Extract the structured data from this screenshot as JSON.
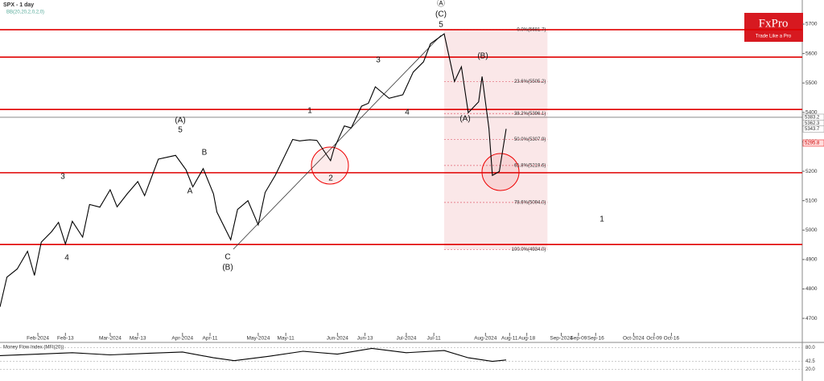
{
  "chart_data": [
    {
      "type": "line",
      "title": "SPX - 1 day",
      "subtitle": "BB(20,20,2,0,2,0)",
      "brand": "FxPro",
      "tagline": "Trade Like a Pro",
      "x": [
        "2024-01-17",
        "2024-01-19",
        "2024-01-24",
        "2024-01-29",
        "2024-01-31",
        "2024-02-02",
        "2024-02-07",
        "2024-02-09",
        "2024-02-13",
        "2024-02-15",
        "2024-02-20",
        "2024-02-22",
        "2024-02-27",
        "2024-03-01",
        "2024-03-05",
        "2024-03-08",
        "2024-03-13",
        "2024-03-15",
        "2024-03-21",
        "2024-03-28",
        "2024-04-02",
        "2024-04-04",
        "2024-04-09",
        "2024-04-12",
        "2024-04-15",
        "2024-04-19",
        "2024-04-23",
        "2024-04-26",
        "2024-05-01",
        "2024-05-03",
        "2024-05-08",
        "2024-05-15",
        "2024-05-17",
        "2024-05-22",
        "2024-05-24",
        "2024-05-30",
        "2024-05-31",
        "2024-06-05",
        "2024-06-07",
        "2024-06-12",
        "2024-06-14",
        "2024-06-18",
        "2024-06-24",
        "2024-06-28",
        "2024-07-03",
        "2024-07-08",
        "2024-07-10",
        "2024-07-16",
        "2024-07-19",
        "2024-07-23",
        "2024-07-25",
        "2024-07-30",
        "2024-07-31",
        "2024-08-02",
        "2024-08-05",
        "2024-08-07",
        "2024-08-09"
      ],
      "series": [
        {
          "name": "SPX",
          "color": "#000000",
          "values": [
            4739,
            4840,
            4868,
            4928,
            4846,
            4959,
            4995,
            5026,
            4953,
            5030,
            4976,
            5087,
            5078,
            5137,
            5079,
            5124,
            5165,
            5117,
            5241,
            5254,
            5205,
            5147,
            5209,
            5123,
            5061,
            4967,
            5070,
            5100,
            5018,
            5128,
            5187,
            5308,
            5303,
            5307,
            5305,
            5236,
            5277,
            5354,
            5347,
            5421,
            5431,
            5487,
            5448,
            5460,
            5537,
            5572,
            5633,
            5667,
            5505,
            5555,
            5399,
            5436,
            5522,
            5346,
            5186,
            5199,
            5344
          ]
        }
      ],
      "xlim": [
        "2024-01-17",
        "2024-12-09"
      ],
      "xticks": [
        {
          "value": "2024-02-01",
          "label": "Feb-2024"
        },
        {
          "value": "2024-02-13",
          "label": "Feb-13"
        },
        {
          "value": "2024-03-01",
          "label": "Mar-2024"
        },
        {
          "value": "2024-03-13",
          "label": "Mar-13"
        },
        {
          "value": "2024-04-01",
          "label": "Apr-2024"
        },
        {
          "value": "2024-04-11",
          "label": "Apr-11"
        },
        {
          "value": "2024-05-01",
          "label": "May-2024"
        },
        {
          "value": "2024-05-11",
          "label": "May-11"
        },
        {
          "value": "2024-06-01",
          "label": "Jun-2024"
        },
        {
          "value": "2024-06-13",
          "label": "Jun-13"
        },
        {
          "value": "2024-07-01",
          "label": "Jul-2024"
        },
        {
          "value": "2024-07-11",
          "label": "Jul-11"
        },
        {
          "value": "2024-08-01",
          "label": "Aug-2024"
        },
        {
          "value": "2024-08-11",
          "label": "Aug-11"
        },
        {
          "value": "2024-08-18",
          "label": "Aug-18"
        },
        {
          "value": "2024-09-01",
          "label": "Sep-2024"
        },
        {
          "value": "2024-09-09",
          "label": "Sep-09"
        },
        {
          "value": "2024-09-16",
          "label": "Sep-16"
        },
        {
          "value": "2024-10-01",
          "label": "Oct-2024"
        },
        {
          "value": "2024-10-09",
          "label": "Oct-09"
        },
        {
          "value": "2024-10-16",
          "label": "Oct-16"
        }
      ],
      "ylim": [
        4621,
        5782
      ],
      "yticks": [
        4700,
        4800,
        4900,
        5000,
        5100,
        5200,
        5300,
        5400,
        5500,
        5600,
        5700
      ],
      "levels": [
        5681,
        5588,
        5410,
        5195,
        4951
      ],
      "level_color": "#e00000",
      "last_price": 5383.2,
      "price_markers": [
        5383.2,
        5362.3,
        5343.7,
        5295.8
      ],
      "fib_x": [
        "2024-07-16",
        "2024-08-27"
      ],
      "fib": [
        {
          "value": 5681.7,
          "label": "0.0%(5681.7)"
        },
        {
          "value": 5505.2,
          "label": "23.6%(5505.2)"
        },
        {
          "value": 5396.1,
          "label": "38.2%(5396.1)"
        },
        {
          "value": 5307.9,
          "label": "50.0%(5307.9)"
        },
        {
          "value": 5219.6,
          "label": "61.8%(5219.6)"
        },
        {
          "value": 5094.0,
          "label": "78.6%(5094.0)"
        },
        {
          "value": 4934.0,
          "label": "100.0%(4934.0)"
        }
      ],
      "annotations": [
        "Ⓐ",
        "(C)",
        "5",
        "(B)",
        "(A)",
        "4",
        "3",
        "1",
        "2",
        "(A)",
        "5",
        "B",
        "A",
        "C",
        "(B)",
        "3",
        "4",
        "1"
      ]
    },
    {
      "type": "line",
      "title": "Money Flow Index (MFI(20))",
      "x": [
        "2024-01-17",
        "2024-02-01",
        "2024-02-15",
        "2024-03-01",
        "2024-03-15",
        "2024-04-01",
        "2024-04-12",
        "2024-04-22",
        "2024-05-06",
        "2024-05-20",
        "2024-06-03",
        "2024-06-17",
        "2024-07-01",
        "2024-07-16",
        "2024-07-25",
        "2024-08-05",
        "2024-08-09"
      ],
      "series": [
        {
          "name": "MFI",
          "color": "#000000",
          "values": [
            58,
            62,
            66,
            60,
            64,
            68,
            52,
            44,
            56,
            70,
            62,
            78,
            66,
            72,
            52,
            42,
            46
          ]
        }
      ],
      "ylim": [
        10,
        90
      ],
      "yticks": [
        {
          "value": 80,
          "label": "80.0"
        },
        {
          "value": 42.5,
          "label": "42.5"
        },
        {
          "value": 20,
          "label": "20.0"
        }
      ]
    }
  ]
}
